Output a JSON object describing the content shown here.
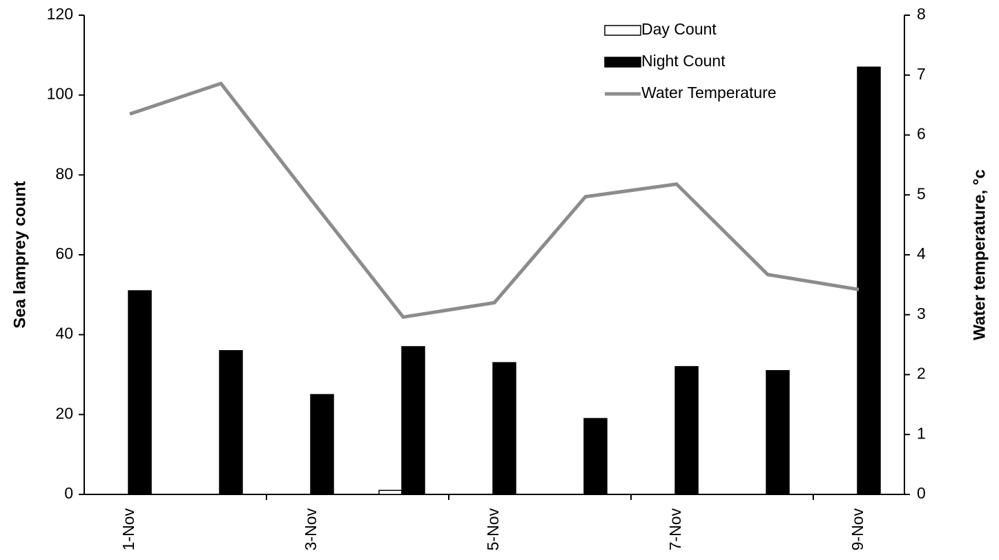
{
  "chart_data": {
    "type": "bar",
    "categories": [
      "1-Nov",
      null,
      "3-Nov",
      null,
      "5-Nov",
      null,
      "7-Nov",
      null,
      "9-Nov"
    ],
    "series": [
      {
        "name": "Day Count",
        "color": "#ffffff",
        "values": [
          0,
          0,
          0,
          1,
          0,
          0,
          0,
          0,
          0
        ]
      },
      {
        "name": "Night Count",
        "color": "#000000",
        "values": [
          51,
          36,
          25,
          37,
          33,
          19,
          32,
          31,
          107
        ]
      },
      {
        "name": "Water Temperature",
        "color": "#8c8c8c",
        "type": "line",
        "axis": "y2",
        "values": [
          6.35,
          6.86,
          4.9,
          2.96,
          3.2,
          4.97,
          5.18,
          3.67,
          3.42
        ]
      }
    ],
    "y_label": "Sea lamprey count",
    "y2_label": "Water temperature, °c",
    "ylim": [
      0,
      120
    ],
    "yticks": [
      0,
      20,
      40,
      60,
      80,
      100,
      120
    ],
    "y2lim": [
      0,
      8
    ],
    "y2ticks": [
      0,
      1,
      2,
      3,
      4,
      5,
      6,
      7,
      8
    ],
    "legend": "top-right"
  }
}
